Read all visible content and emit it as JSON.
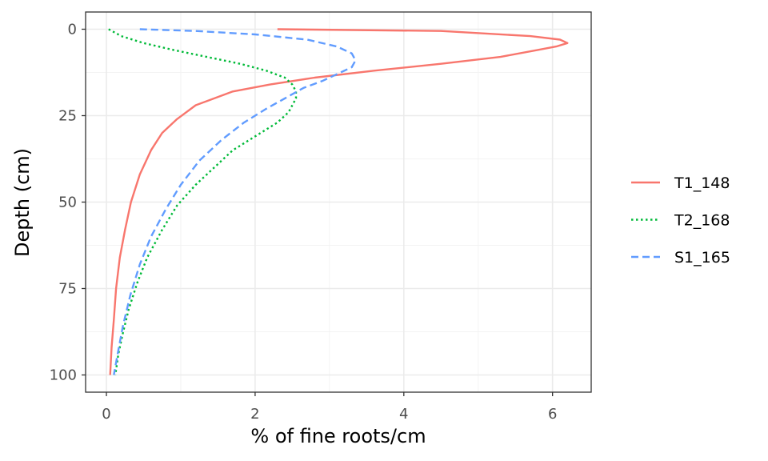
{
  "chart_data": {
    "type": "line",
    "xlabel": "% of fine roots/cm",
    "ylabel": "Depth (cm)",
    "xlim": [
      -0.28,
      6.52
    ],
    "ylim": [
      0,
      100
    ],
    "y_reversed": true,
    "x_ticks": [
      0,
      2,
      4,
      6
    ],
    "x_minor_ticks": [
      1,
      3,
      5
    ],
    "y_ticks": [
      0,
      25,
      50,
      75,
      100
    ],
    "y_minor_ticks": [
      12.5,
      37.5,
      62.5,
      87.5
    ],
    "grid": true,
    "legend_position": "right",
    "series": [
      {
        "name": "T1_148",
        "color": "#F8766D",
        "dash": "solid",
        "points": [
          [
            2.3,
            0
          ],
          [
            4.5,
            0.5
          ],
          [
            5.7,
            2
          ],
          [
            6.1,
            3
          ],
          [
            6.2,
            4
          ],
          [
            6.05,
            5
          ],
          [
            5.8,
            6
          ],
          [
            5.3,
            8
          ],
          [
            4.5,
            10
          ],
          [
            3.6,
            12
          ],
          [
            2.8,
            14
          ],
          [
            2.2,
            16
          ],
          [
            1.7,
            18
          ],
          [
            1.2,
            22
          ],
          [
            0.95,
            26
          ],
          [
            0.75,
            30
          ],
          [
            0.6,
            35
          ],
          [
            0.45,
            42
          ],
          [
            0.33,
            50
          ],
          [
            0.25,
            58
          ],
          [
            0.18,
            66
          ],
          [
            0.13,
            75
          ],
          [
            0.1,
            84
          ],
          [
            0.07,
            92
          ],
          [
            0.05,
            100
          ]
        ]
      },
      {
        "name": "T2_168",
        "color": "#00BA38",
        "dash": "dotted",
        "points": [
          [
            0.03,
            0
          ],
          [
            0.2,
            2
          ],
          [
            0.5,
            4
          ],
          [
            0.9,
            6
          ],
          [
            1.35,
            8
          ],
          [
            1.8,
            10
          ],
          [
            2.15,
            12
          ],
          [
            2.4,
            14
          ],
          [
            2.5,
            16
          ],
          [
            2.55,
            18
          ],
          [
            2.55,
            20
          ],
          [
            2.5,
            22
          ],
          [
            2.45,
            24
          ],
          [
            2.3,
            27
          ],
          [
            2.0,
            31
          ],
          [
            1.7,
            35
          ],
          [
            1.45,
            40
          ],
          [
            1.2,
            45
          ],
          [
            0.95,
            51
          ],
          [
            0.75,
            58
          ],
          [
            0.55,
            66
          ],
          [
            0.42,
            73
          ],
          [
            0.3,
            81
          ],
          [
            0.22,
            88
          ],
          [
            0.16,
            94
          ],
          [
            0.12,
            100
          ]
        ]
      },
      {
        "name": "S1_165",
        "color": "#619CFF",
        "dash": "dashed",
        "points": [
          [
            0.45,
            0
          ],
          [
            1.2,
            0.5
          ],
          [
            2.0,
            1.5
          ],
          [
            2.7,
            3
          ],
          [
            3.1,
            5
          ],
          [
            3.3,
            7
          ],
          [
            3.35,
            9
          ],
          [
            3.3,
            11
          ],
          [
            3.1,
            13
          ],
          [
            2.9,
            15
          ],
          [
            2.65,
            17
          ],
          [
            2.4,
            20
          ],
          [
            2.15,
            23
          ],
          [
            1.85,
            27
          ],
          [
            1.55,
            32
          ],
          [
            1.25,
            38
          ],
          [
            1.0,
            45
          ],
          [
            0.8,
            52
          ],
          [
            0.6,
            60
          ],
          [
            0.45,
            68
          ],
          [
            0.32,
            77
          ],
          [
            0.22,
            86
          ],
          [
            0.15,
            94
          ],
          [
            0.1,
            100
          ]
        ]
      }
    ]
  }
}
